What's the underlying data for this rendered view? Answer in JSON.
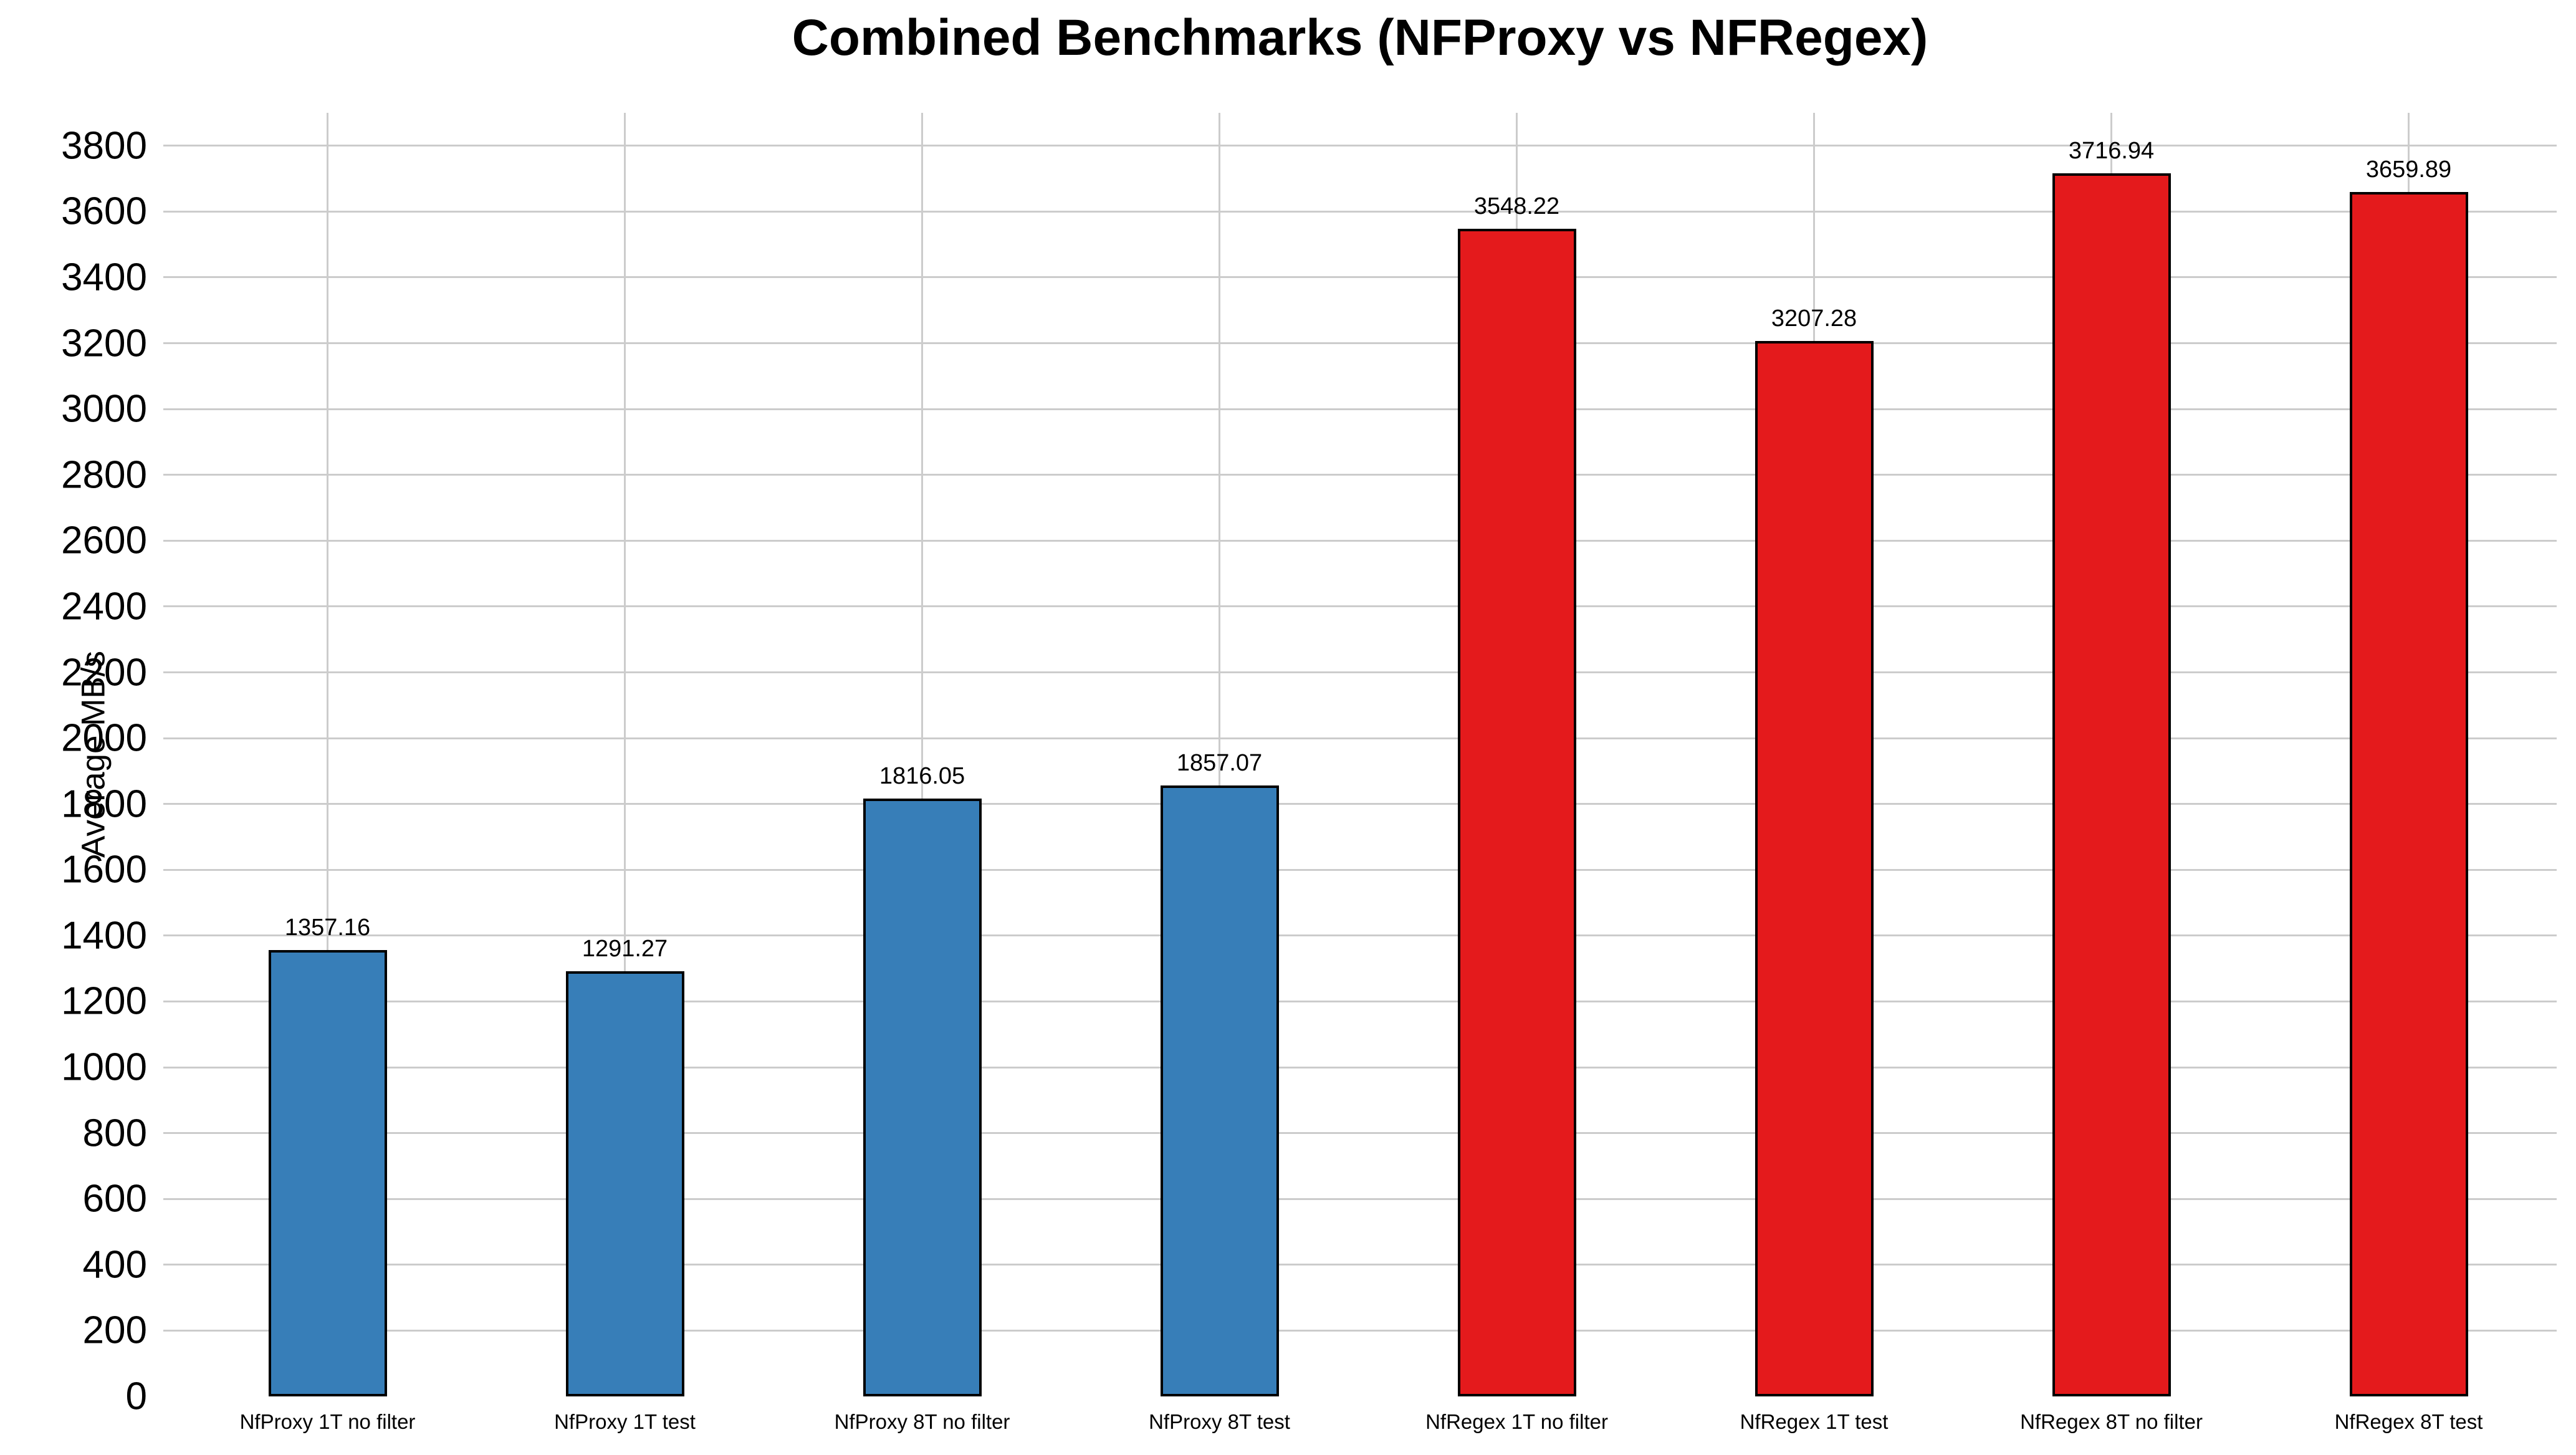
{
  "chart_data": {
    "type": "bar",
    "title": "Combined Benchmarks (NFProxy vs NFRegex)",
    "ylabel": "Average MB/s",
    "xlabel": "",
    "ylim": [
      0,
      3900
    ],
    "y_ticks": [
      0,
      200,
      400,
      600,
      800,
      1000,
      1200,
      1400,
      1600,
      1800,
      2000,
      2200,
      2400,
      2600,
      2800,
      3000,
      3200,
      3400,
      3600,
      3800
    ],
    "grid": true,
    "legend_position": "none",
    "categories": [
      "NfProxy 1T no filter",
      "NfProxy 1T test",
      "NfProxy 8T no filter",
      "NfProxy 8T test",
      "NfRegex 1T no filter",
      "NfRegex 1T test",
      "NfRegex 8T no filter",
      "NfRegex 8T test"
    ],
    "values": [
      1357.16,
      1291.27,
      1816.05,
      1857.07,
      3548.22,
      3207.28,
      3716.94,
      3659.89
    ],
    "value_labels": [
      "1357.16",
      "1291.27",
      "1816.05",
      "1857.07",
      "3548.22",
      "3207.28",
      "3716.94",
      "3659.89"
    ],
    "bar_colors": [
      "#377eb8",
      "#377eb8",
      "#377eb8",
      "#377eb8",
      "#e41a1c",
      "#e41a1c",
      "#e41a1c",
      "#e41a1c"
    ],
    "groups": [
      {
        "name": "NFProxy",
        "color": "#377eb8"
      },
      {
        "name": "NFRegex",
        "color": "#e41a1c"
      }
    ],
    "colors": {
      "grid": "#cccccc",
      "bar_edge": "#000000",
      "background": "#ffffff",
      "text": "#000000"
    }
  }
}
